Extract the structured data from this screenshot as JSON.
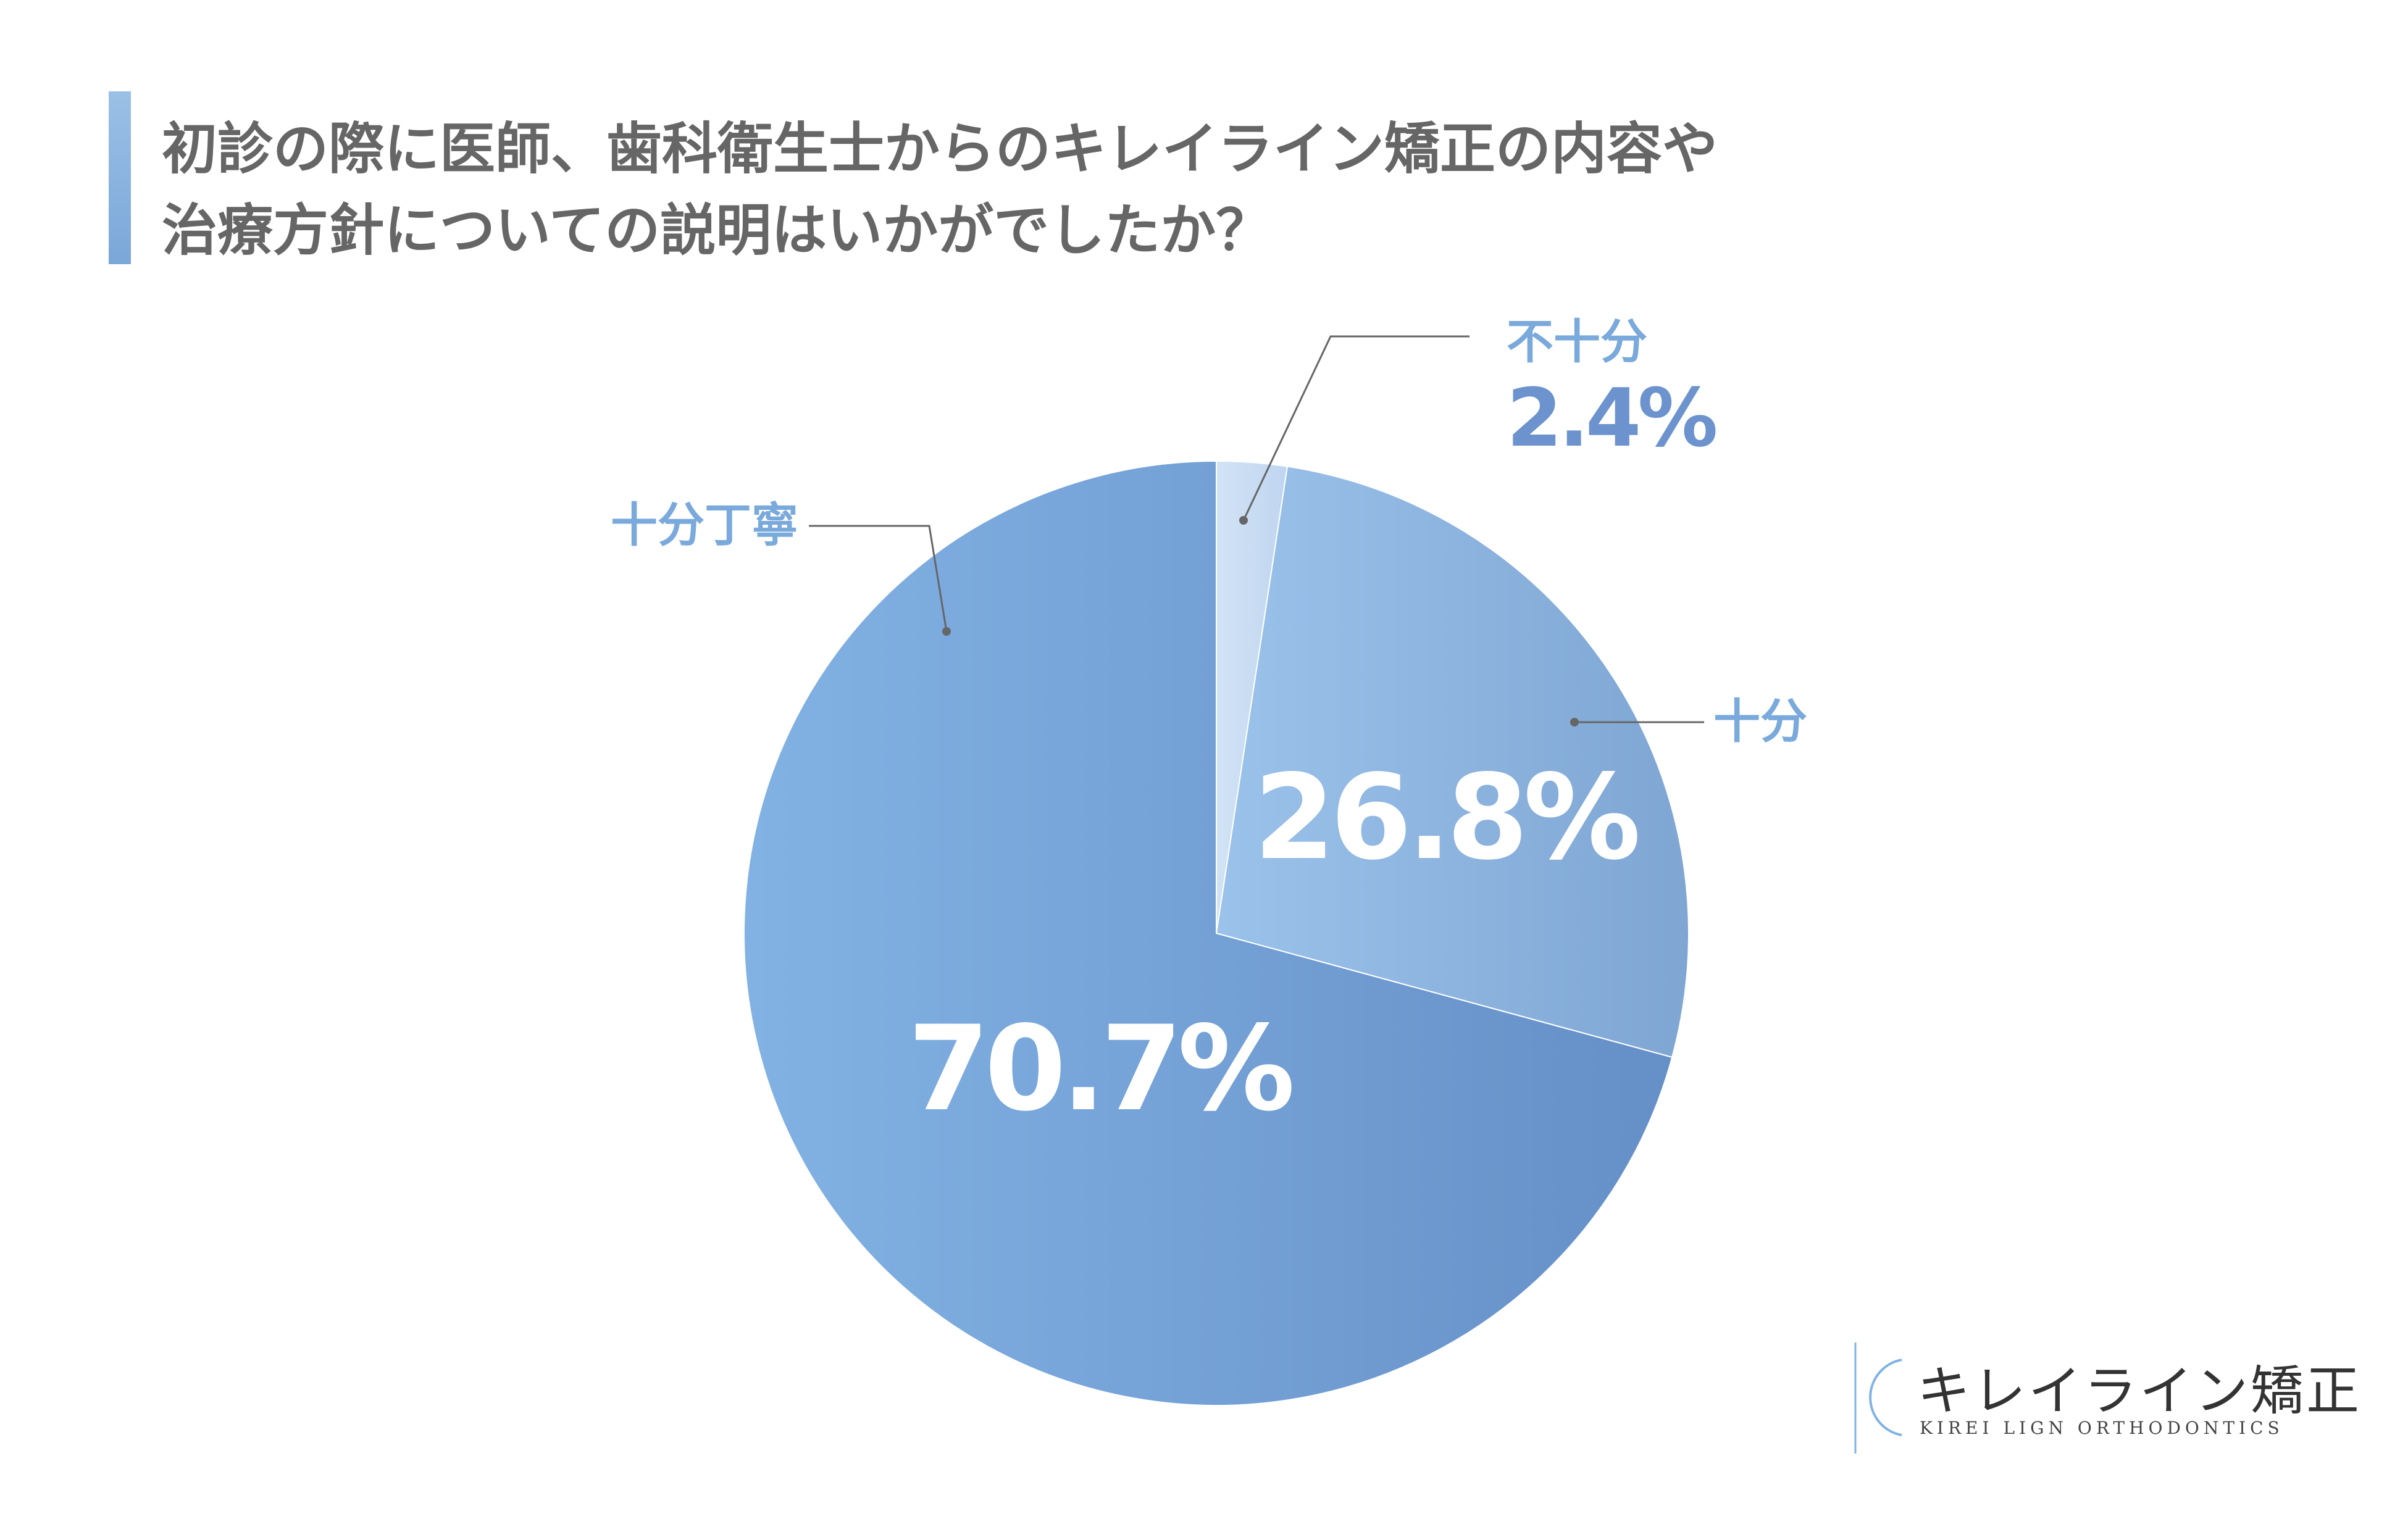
{
  "title_lines": [
    "初診の際に医師、歯科衛生士からのキレイライン矯正の内容や",
    "治療方針についての説明はいかがでしたか？"
  ],
  "chart_data": {
    "type": "pie",
    "start_angle_deg": 0,
    "direction": "clockwise",
    "slices": [
      {
        "label": "不十分",
        "value": 2.4,
        "display": "2.4%",
        "color": "#c5daf2"
      },
      {
        "label": "十分",
        "value": 26.8,
        "display": "26.8%",
        "color": "#8fb6e1"
      },
      {
        "label": "十分丁寧",
        "value": 70.7,
        "display": "70.7%",
        "color": "#7aa8dc"
      }
    ],
    "colors": {
      "inner_pct": "#ffffff",
      "outer_pct": "#6c93cd",
      "category": "#7aa9dc",
      "leader": "#666666"
    }
  },
  "logo": {
    "name": "キレイライン矯正",
    "subtitle": "KIREI LIGN ORTHODONTICS"
  }
}
